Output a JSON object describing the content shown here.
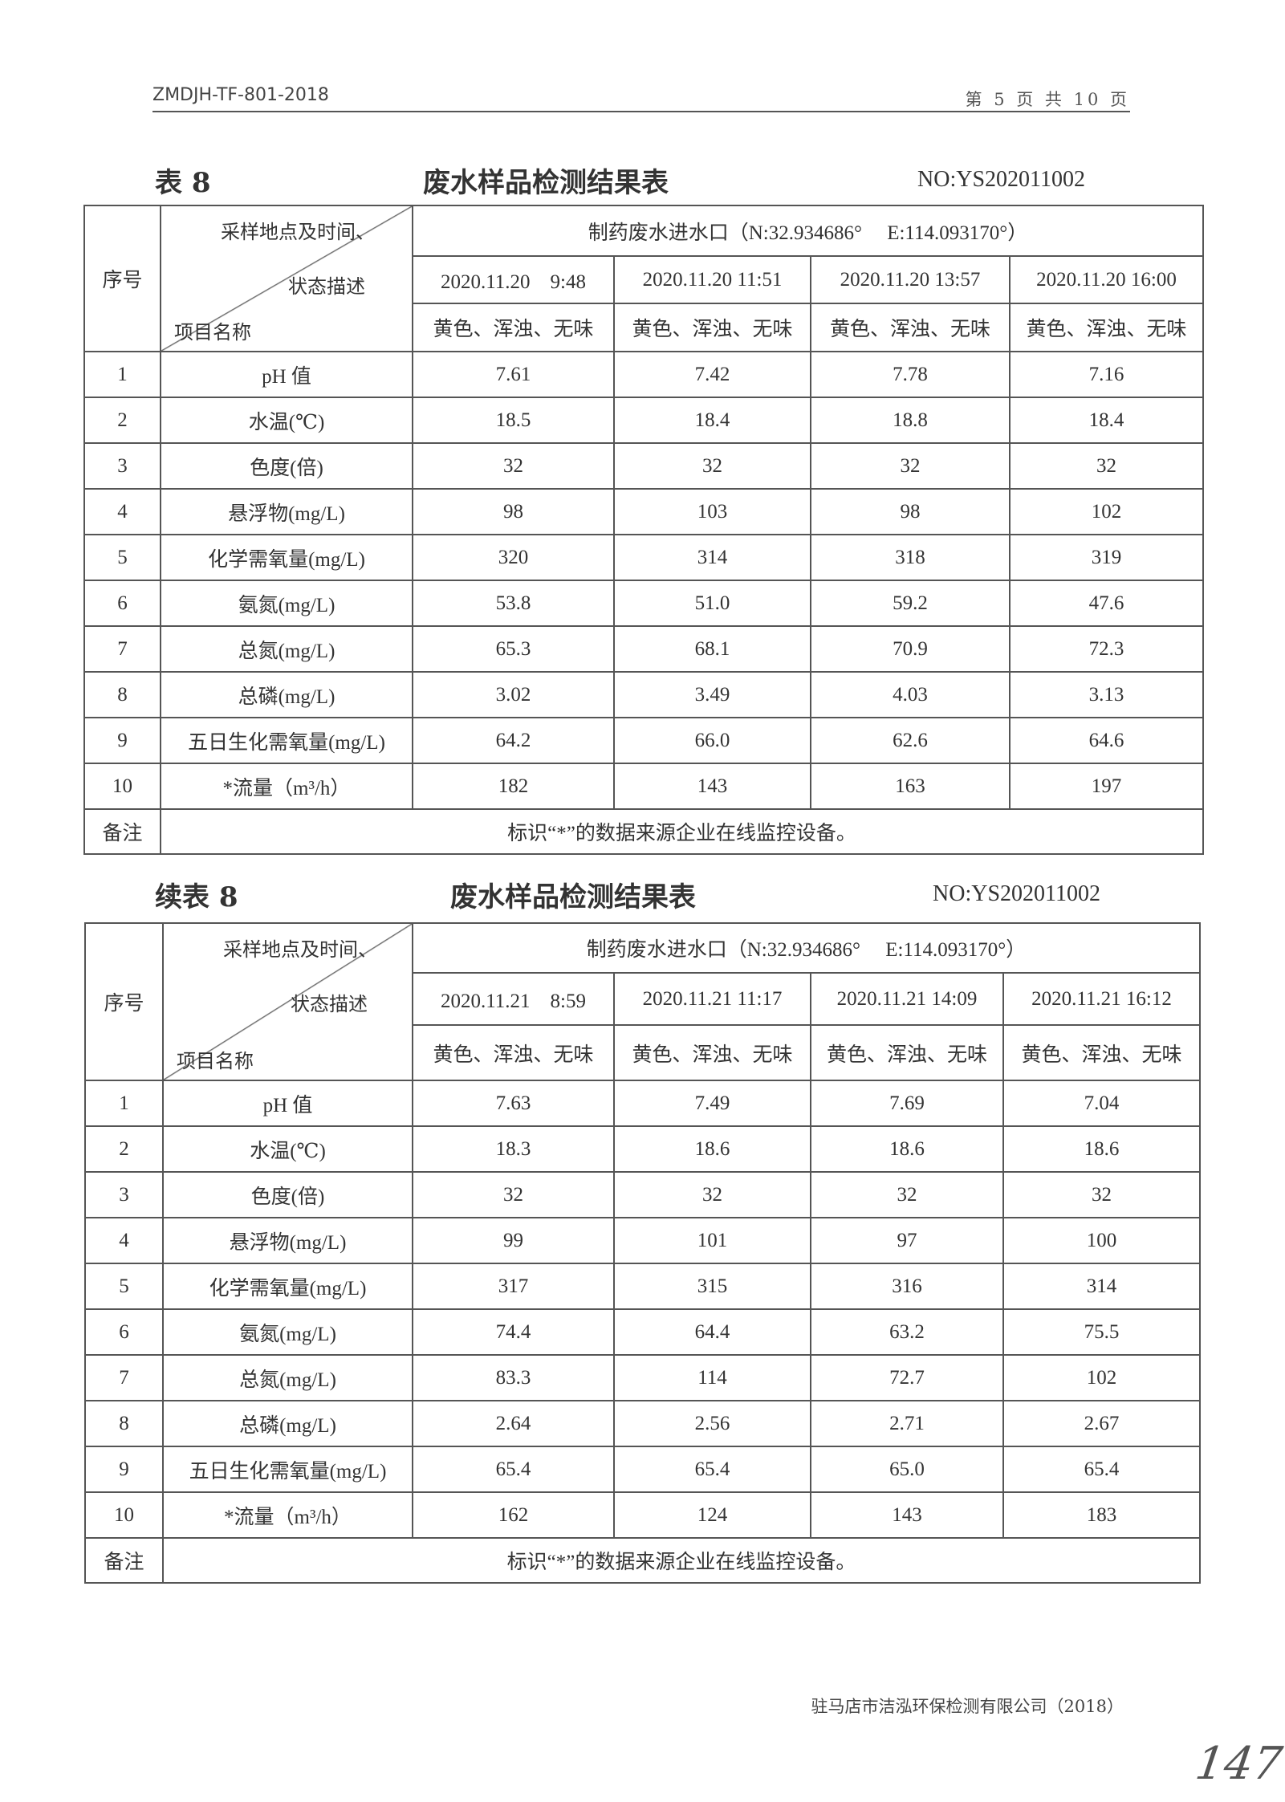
{
  "header": {
    "doc_code": "ZMDJH-TF-801-2018",
    "page_info": "第 5 页 共 10 页"
  },
  "tables": [
    {
      "label": "表 8",
      "title": "废水样品检测结果表",
      "no": "NO:YS202011002",
      "diag": {
        "top": "采样地点及时间、",
        "mid": "状态描述",
        "bottom": "项目名称"
      },
      "seq_header": "序号",
      "location": "制药废水进水口（N:32.934686°　 E:114.093170°）",
      "times": [
        "2020.11.20　9:48",
        "2020.11.20 11:51",
        "2020.11.20 13:57",
        "2020.11.20 16:00"
      ],
      "states": [
        "黄色、浑浊、无味",
        "黄色、浑浊、无味",
        "黄色、浑浊、无味",
        "黄色、浑浊、无味"
      ],
      "rows": [
        {
          "n": "1",
          "item": "pH 值",
          "v": [
            "7.61",
            "7.42",
            "7.78",
            "7.16"
          ]
        },
        {
          "n": "2",
          "item": "水温(℃)",
          "v": [
            "18.5",
            "18.4",
            "18.8",
            "18.4"
          ]
        },
        {
          "n": "3",
          "item": "色度(倍)",
          "v": [
            "32",
            "32",
            "32",
            "32"
          ]
        },
        {
          "n": "4",
          "item": "悬浮物(mg/L)",
          "v": [
            "98",
            "103",
            "98",
            "102"
          ]
        },
        {
          "n": "5",
          "item": "化学需氧量(mg/L)",
          "v": [
            "320",
            "314",
            "318",
            "319"
          ]
        },
        {
          "n": "6",
          "item": "氨氮(mg/L)",
          "v": [
            "53.8",
            "51.0",
            "59.2",
            "47.6"
          ]
        },
        {
          "n": "7",
          "item": "总氮(mg/L)",
          "v": [
            "65.3",
            "68.1",
            "70.9",
            "72.3"
          ]
        },
        {
          "n": "8",
          "item": "总磷(mg/L)",
          "v": [
            "3.02",
            "3.49",
            "4.03",
            "3.13"
          ]
        },
        {
          "n": "9",
          "item": "五日生化需氧量(mg/L)",
          "v": [
            "64.2",
            "66.0",
            "62.6",
            "64.6"
          ]
        },
        {
          "n": "10",
          "item": "*流量（m³/h）",
          "v": [
            "182",
            "143",
            "163",
            "197"
          ]
        }
      ],
      "remark_label": "备注",
      "remark": "标识“*”的数据来源企业在线监控设备。"
    },
    {
      "label": "续表 8",
      "title": "废水样品检测结果表",
      "no": "NO:YS202011002",
      "diag": {
        "top": "采样地点及时间、",
        "mid": "状态描述",
        "bottom": "项目名称"
      },
      "seq_header": "序号",
      "location": "制药废水进水口（N:32.934686°　 E:114.093170°）",
      "times": [
        "2020.11.21　8:59",
        "2020.11.21 11:17",
        "2020.11.21 14:09",
        "2020.11.21 16:12"
      ],
      "states": [
        "黄色、浑浊、无味",
        "黄色、浑浊、无味",
        "黄色、浑浊、无味",
        "黄色、浑浊、无味"
      ],
      "rows": [
        {
          "n": "1",
          "item": "pH 值",
          "v": [
            "7.63",
            "7.49",
            "7.69",
            "7.04"
          ]
        },
        {
          "n": "2",
          "item": "水温(℃)",
          "v": [
            "18.3",
            "18.6",
            "18.6",
            "18.6"
          ]
        },
        {
          "n": "3",
          "item": "色度(倍)",
          "v": [
            "32",
            "32",
            "32",
            "32"
          ]
        },
        {
          "n": "4",
          "item": "悬浮物(mg/L)",
          "v": [
            "99",
            "101",
            "97",
            "100"
          ]
        },
        {
          "n": "5",
          "item": "化学需氧量(mg/L)",
          "v": [
            "317",
            "315",
            "316",
            "314"
          ]
        },
        {
          "n": "6",
          "item": "氨氮(mg/L)",
          "v": [
            "74.4",
            "64.4",
            "63.2",
            "75.5"
          ]
        },
        {
          "n": "7",
          "item": "总氮(mg/L)",
          "v": [
            "83.3",
            "114",
            "72.7",
            "102"
          ]
        },
        {
          "n": "8",
          "item": "总磷(mg/L)",
          "v": [
            "2.64",
            "2.56",
            "2.71",
            "2.67"
          ]
        },
        {
          "n": "9",
          "item": "五日生化需氧量(mg/L)",
          "v": [
            "65.4",
            "65.4",
            "65.0",
            "65.4"
          ]
        },
        {
          "n": "10",
          "item": "*流量（m³/h）",
          "v": [
            "162",
            "124",
            "143",
            "183"
          ]
        }
      ],
      "remark_label": "备注",
      "remark": "标识“*”的数据来源企业在线监控设备。"
    }
  ],
  "footer": "驻马店市洁泓环保检测有限公司（2018）",
  "handwritten_page": "147"
}
